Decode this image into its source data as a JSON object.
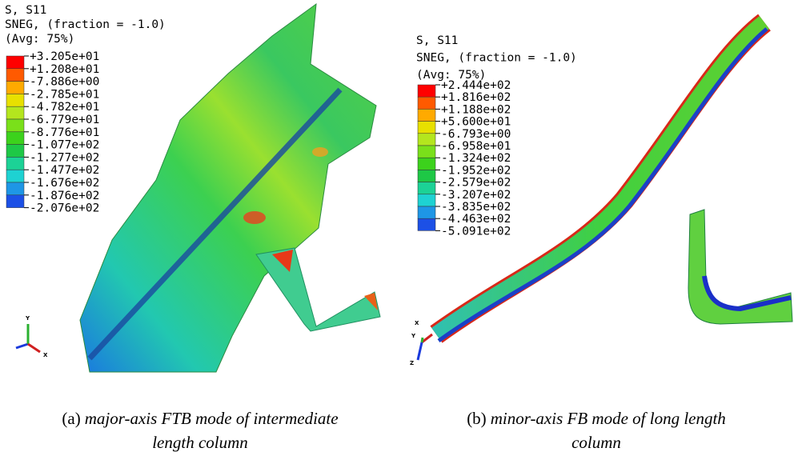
{
  "panels": [
    {
      "legend": {
        "lines": [
          "S, S11",
          "SNEG, (fraction = -1.0)",
          "(Avg: 75%)"
        ],
        "values": [
          "+3.205e+01",
          "+1.208e+01",
          "-7.886e+00",
          "-2.785e+01",
          "-4.782e+01",
          "-6.779e+01",
          "-8.776e+01",
          "-1.077e+02",
          "-1.277e+02",
          "-1.477e+02",
          "-1.676e+02",
          "-1.876e+02",
          "-2.076e+02"
        ]
      },
      "triad": [
        "Y",
        "X"
      ],
      "caption": {
        "label": "(a)",
        "lines": [
          "major-axis FTB mode of intermediate",
          "length column"
        ]
      }
    },
    {
      "legend": {
        "lines": [
          "S, S11",
          "SNEG, (fraction = -1.0)",
          "(Avg: 75%)"
        ],
        "values": [
          "+2.444e+02",
          "+1.816e+02",
          "+1.188e+02",
          "+5.600e+01",
          "-6.793e+00",
          "-6.958e+01",
          "-1.324e+02",
          "-1.952e+02",
          "-2.579e+02",
          "-3.207e+02",
          "-3.835e+02",
          "-4.463e+02",
          "-5.091e+02"
        ]
      },
      "triad": [
        "X",
        "Y",
        "Z"
      ],
      "caption": {
        "label": "(b)",
        "lines": [
          "minor-axis FB mode of long length",
          "column"
        ]
      }
    }
  ]
}
